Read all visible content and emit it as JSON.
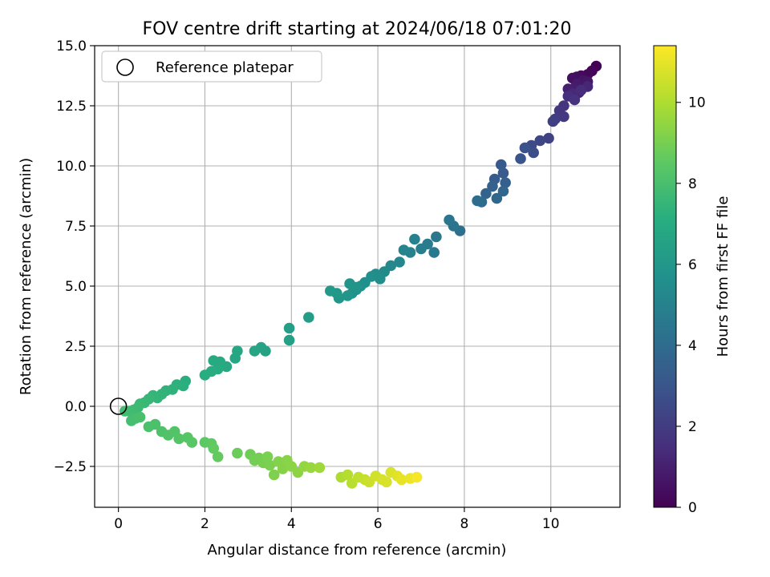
{
  "chart_data": {
    "type": "scatter",
    "title": "FOV centre drift starting at 2024/06/18 07:01:20",
    "xlabel": "Angular distance from reference (arcmin)",
    "ylabel": "Rotation from reference (arcmin)",
    "xlim": [
      -0.55,
      11.6
    ],
    "ylim": [
      -4.2,
      15.0
    ],
    "xticks": [
      0,
      2,
      4,
      6,
      8,
      10
    ],
    "xtick_labels": [
      "0",
      "2",
      "4",
      "6",
      "8",
      "10"
    ],
    "yticks": [
      -2.5,
      0.0,
      2.5,
      5.0,
      7.5,
      10.0,
      12.5,
      15.0
    ],
    "ytick_labels": [
      "−2.5",
      "0.0",
      "2.5",
      "5.0",
      "7.5",
      "10.0",
      "12.5",
      "15.0"
    ],
    "grid": true,
    "legend": {
      "position": "top-left",
      "entries": [
        "Reference platepar"
      ]
    },
    "reference_point": {
      "x": 0,
      "y": 0
    },
    "colorbar": {
      "label": "Hours from first FF file",
      "colormap": "viridis",
      "range": [
        0,
        11.4
      ],
      "ticks": [
        0,
        2,
        4,
        6,
        8,
        10
      ],
      "tick_labels": [
        "0",
        "2",
        "4",
        "6",
        "8",
        "10"
      ]
    },
    "series": [
      {
        "points": [
          [
            11.05,
            14.15,
            0.0
          ],
          [
            10.95,
            13.95,
            0.1
          ],
          [
            10.85,
            13.8,
            0.2
          ],
          [
            10.7,
            13.75,
            0.3
          ],
          [
            10.6,
            13.7,
            0.4
          ],
          [
            10.5,
            13.65,
            0.5
          ],
          [
            10.75,
            13.55,
            0.6
          ],
          [
            10.85,
            13.5,
            0.7
          ],
          [
            10.6,
            13.4,
            0.8
          ],
          [
            10.55,
            13.25,
            0.9
          ],
          [
            10.4,
            13.2,
            1.0
          ],
          [
            10.65,
            13.05,
            1.1
          ],
          [
            10.85,
            13.3,
            1.2
          ],
          [
            10.5,
            13.0,
            1.3
          ],
          [
            10.7,
            13.15,
            1.4
          ],
          [
            10.4,
            12.9,
            1.5
          ],
          [
            10.55,
            12.75,
            1.6
          ],
          [
            10.3,
            12.5,
            1.7
          ],
          [
            10.2,
            12.3,
            1.8
          ],
          [
            10.3,
            12.05,
            1.9
          ],
          [
            10.1,
            11.95,
            2.0
          ],
          [
            10.05,
            11.85,
            2.1
          ],
          [
            9.95,
            11.15,
            2.25
          ],
          [
            9.75,
            11.05,
            2.4
          ],
          [
            9.55,
            10.85,
            2.55
          ],
          [
            9.6,
            10.55,
            2.7
          ],
          [
            9.4,
            10.75,
            2.85
          ],
          [
            9.3,
            10.3,
            3.0
          ],
          [
            8.85,
            10.05,
            3.15
          ],
          [
            8.9,
            9.7,
            3.25
          ],
          [
            8.7,
            9.45,
            3.35
          ],
          [
            8.95,
            9.3,
            3.45
          ],
          [
            8.65,
            9.15,
            3.55
          ],
          [
            8.5,
            8.85,
            3.65
          ],
          [
            8.9,
            8.95,
            3.75
          ],
          [
            8.75,
            8.65,
            3.85
          ],
          [
            8.4,
            8.5,
            3.95
          ],
          [
            8.3,
            8.55,
            4.05
          ],
          [
            7.9,
            7.3,
            4.2
          ],
          [
            7.75,
            7.5,
            4.3
          ],
          [
            7.65,
            7.75,
            4.4
          ],
          [
            7.35,
            7.05,
            4.5
          ],
          [
            7.3,
            6.4,
            4.6
          ],
          [
            7.15,
            6.75,
            4.7
          ],
          [
            7.0,
            6.55,
            4.8
          ],
          [
            6.85,
            6.95,
            4.9
          ],
          [
            6.75,
            6.4,
            5.0
          ],
          [
            6.6,
            6.5,
            5.1
          ],
          [
            6.5,
            6.0,
            5.2
          ],
          [
            6.3,
            5.85,
            5.3
          ],
          [
            6.15,
            5.6,
            5.4
          ],
          [
            6.05,
            5.3,
            5.5
          ],
          [
            5.95,
            5.5,
            5.55
          ],
          [
            5.85,
            5.4,
            5.6
          ],
          [
            5.7,
            5.15,
            5.65
          ],
          [
            5.6,
            5.0,
            5.7
          ],
          [
            5.5,
            4.85,
            5.75
          ],
          [
            5.4,
            4.7,
            5.8
          ],
          [
            5.35,
            5.1,
            5.85
          ],
          [
            5.5,
            4.95,
            5.9
          ],
          [
            5.3,
            4.6,
            5.95
          ],
          [
            5.1,
            4.5,
            6.0
          ],
          [
            5.05,
            4.7,
            6.05
          ],
          [
            4.9,
            4.8,
            6.1
          ],
          [
            4.4,
            3.7,
            6.25
          ],
          [
            3.95,
            3.25,
            6.35
          ],
          [
            3.95,
            2.75,
            6.45
          ],
          [
            3.4,
            2.3,
            6.55
          ],
          [
            3.3,
            2.45,
            6.6
          ],
          [
            3.15,
            2.3,
            6.65
          ],
          [
            2.75,
            2.3,
            6.75
          ],
          [
            2.7,
            2.0,
            6.8
          ],
          [
            2.5,
            1.65,
            6.85
          ],
          [
            2.35,
            1.85,
            6.9
          ],
          [
            2.2,
            1.9,
            6.95
          ],
          [
            2.3,
            1.55,
            7.0
          ],
          [
            2.15,
            1.45,
            7.05
          ],
          [
            2.0,
            1.3,
            7.1
          ],
          [
            1.55,
            1.05,
            7.15
          ],
          [
            1.5,
            0.85,
            7.2
          ],
          [
            1.35,
            0.9,
            7.25
          ],
          [
            1.25,
            0.7,
            7.3
          ],
          [
            1.1,
            0.65,
            7.35
          ],
          [
            1.0,
            0.5,
            7.4
          ],
          [
            0.9,
            0.35,
            7.45
          ],
          [
            0.8,
            0.45,
            7.5
          ],
          [
            0.7,
            0.3,
            7.55
          ],
          [
            0.6,
            0.15,
            7.6
          ],
          [
            0.5,
            0.1,
            7.65
          ],
          [
            0.45,
            -0.05,
            7.7
          ],
          [
            0.35,
            -0.15,
            7.75
          ],
          [
            0.25,
            -0.2,
            7.8
          ],
          [
            0.15,
            -0.2,
            7.85
          ],
          [
            0.3,
            -0.6,
            7.9
          ],
          [
            0.4,
            -0.5,
            7.95
          ],
          [
            0.5,
            -0.45,
            8.0
          ],
          [
            0.7,
            -0.85,
            8.05
          ],
          [
            0.85,
            -0.75,
            8.1
          ],
          [
            1.0,
            -1.05,
            8.15
          ],
          [
            1.15,
            -1.2,
            8.2
          ],
          [
            1.3,
            -1.05,
            8.25
          ],
          [
            1.4,
            -1.35,
            8.3
          ],
          [
            1.6,
            -1.3,
            8.35
          ],
          [
            1.7,
            -1.5,
            8.4
          ],
          [
            2.0,
            -1.5,
            8.5
          ],
          [
            2.15,
            -1.55,
            8.55
          ],
          [
            2.2,
            -1.75,
            8.6
          ],
          [
            2.3,
            -2.1,
            8.65
          ],
          [
            2.75,
            -1.95,
            8.75
          ],
          [
            3.05,
            -2.0,
            8.85
          ],
          [
            3.15,
            -2.25,
            8.9
          ],
          [
            3.25,
            -2.15,
            8.95
          ],
          [
            3.35,
            -2.35,
            9.0
          ],
          [
            3.45,
            -2.1,
            9.05
          ],
          [
            3.5,
            -2.45,
            9.1
          ],
          [
            3.6,
            -2.85,
            9.15
          ],
          [
            3.7,
            -2.3,
            9.2
          ],
          [
            3.8,
            -2.6,
            9.25
          ],
          [
            3.9,
            -2.25,
            9.3
          ],
          [
            4.0,
            -2.5,
            9.35
          ],
          [
            4.15,
            -2.75,
            9.4
          ],
          [
            4.3,
            -2.5,
            9.5
          ],
          [
            4.45,
            -2.55,
            9.6
          ],
          [
            4.65,
            -2.55,
            9.7
          ],
          [
            5.15,
            -2.95,
            10.0
          ],
          [
            5.3,
            -2.85,
            10.1
          ],
          [
            5.4,
            -3.2,
            10.2
          ],
          [
            5.55,
            -2.95,
            10.3
          ],
          [
            5.7,
            -3.05,
            10.4
          ],
          [
            5.8,
            -3.15,
            10.5
          ],
          [
            5.95,
            -2.9,
            10.6
          ],
          [
            6.1,
            -3.05,
            10.7
          ],
          [
            6.2,
            -3.15,
            10.75
          ],
          [
            6.3,
            -2.75,
            10.8
          ],
          [
            6.45,
            -2.9,
            10.9
          ],
          [
            6.55,
            -3.05,
            11.0
          ],
          [
            6.75,
            -3.0,
            11.1
          ],
          [
            6.9,
            -2.95,
            11.3
          ]
        ]
      }
    ]
  }
}
